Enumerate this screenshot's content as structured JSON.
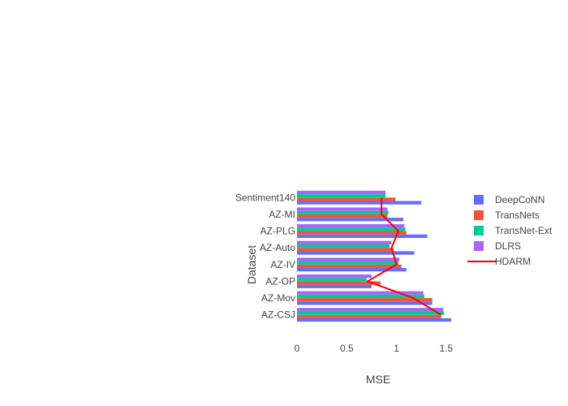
{
  "chart_data": {
    "type": "bar",
    "orientation": "horizontal",
    "title": "",
    "xlabel": "MSE",
    "ylabel": "Dataset",
    "xlim": [
      0,
      1.55
    ],
    "xticks": [
      0,
      0.5,
      1,
      1.5
    ],
    "xtick_labels": [
      "0",
      "0.5",
      "1",
      "1.5"
    ],
    "categories": [
      "AZ-CSJ",
      "AZ-Mov",
      "AZ-OP",
      "AZ-IV",
      "AZ-Auto",
      "AZ-PLG",
      "AZ-MI",
      "Sentiment140"
    ],
    "series": [
      {
        "name": "DeepCoNN",
        "kind": "bar",
        "color": "#636efa",
        "values": [
          1.55,
          1.36,
          0.75,
          1.1,
          1.18,
          1.31,
          1.07,
          1.25
        ]
      },
      {
        "name": "TransNets",
        "kind": "bar",
        "color": "#ef553b",
        "values": [
          1.45,
          1.36,
          0.84,
          1.05,
          0.97,
          1.1,
          0.91,
          0.99
        ]
      },
      {
        "name": "TransNet-Ext",
        "kind": "bar",
        "color": "#00cc96",
        "values": [
          1.48,
          1.28,
          0.7,
          1.02,
          0.93,
          1.09,
          0.92,
          0.89
        ]
      },
      {
        "name": "DLRS",
        "kind": "bar",
        "color": "#ab63fa",
        "values": [
          1.47,
          1.27,
          0.75,
          1.03,
          0.95,
          1.08,
          0.91,
          0.89
        ]
      },
      {
        "name": "HDARM",
        "kind": "line",
        "color": "#ff0000",
        "values": [
          1.45,
          1.17,
          0.71,
          1.0,
          0.95,
          1.02,
          0.85,
          0.85
        ]
      }
    ],
    "grid": false,
    "legend_position": "right"
  }
}
